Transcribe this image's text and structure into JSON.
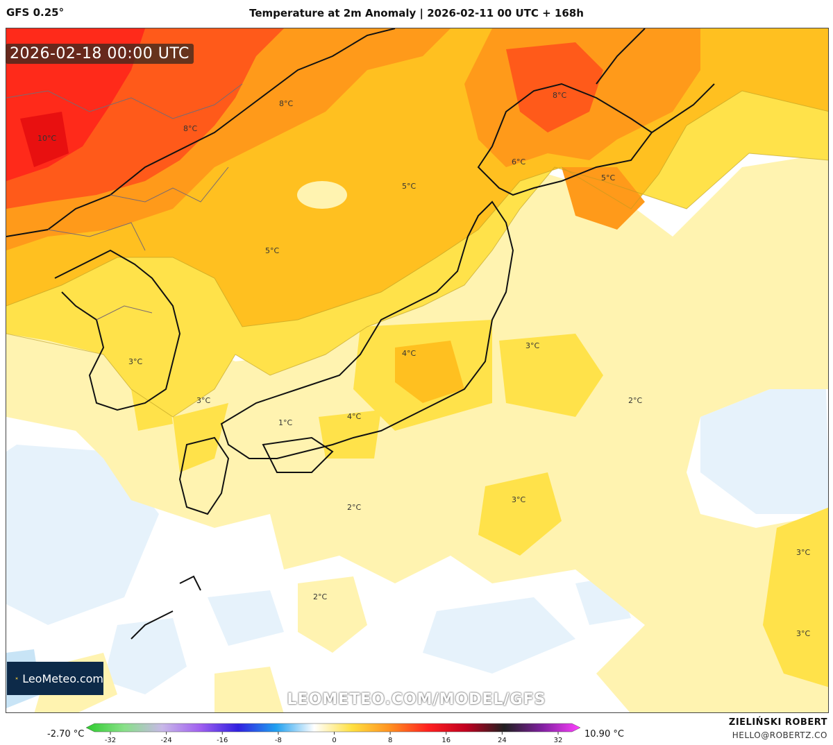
{
  "header": {
    "model": "GFS 0.25°",
    "title": "Temperature at 2m Anomaly | 2026-02-11 00 UTC + 168h"
  },
  "valid_time": "2026-02-18 00:00 UTC",
  "logo_text": "LeoMeteo.com",
  "watermark": "LEOMETEO.COM/MODEL/GFS",
  "colorbar": {
    "min_label": "-2.70 °C",
    "max_label": "10.90 °C",
    "ticks": [
      "-32",
      "-24",
      "-16",
      "-8",
      "0",
      "8",
      "16",
      "24",
      "32"
    ],
    "colors": [
      "#2ecc2e",
      "#88e088",
      "#c8b8e8",
      "#a060f0",
      "#3020e0",
      "#20a0f0",
      "#ffffff",
      "#ffe040",
      "#ff9020",
      "#ff2020",
      "#c00020",
      "#202020",
      "#8020a0",
      "#ff40ff"
    ]
  },
  "credit": {
    "name": "ZIELIŃSKI ROBERT",
    "email": "HELLO@ROBERTZ.CO"
  },
  "map_labels": [
    {
      "text": "10°C"
    },
    {
      "text": "8°C"
    },
    {
      "text": "8°C"
    },
    {
      "text": "8°C"
    },
    {
      "text": "6°C"
    },
    {
      "text": "5°C"
    },
    {
      "text": "5°C"
    },
    {
      "text": "5°C"
    },
    {
      "text": "3°C"
    },
    {
      "text": "3°C"
    },
    {
      "text": "4°C"
    },
    {
      "text": "3°C"
    },
    {
      "text": "2°C"
    },
    {
      "text": "1°C"
    },
    {
      "text": "4°C"
    },
    {
      "text": "3°C"
    },
    {
      "text": "2°C"
    },
    {
      "text": "2°C"
    },
    {
      "text": "3°C"
    },
    {
      "text": "3°C"
    }
  ]
}
